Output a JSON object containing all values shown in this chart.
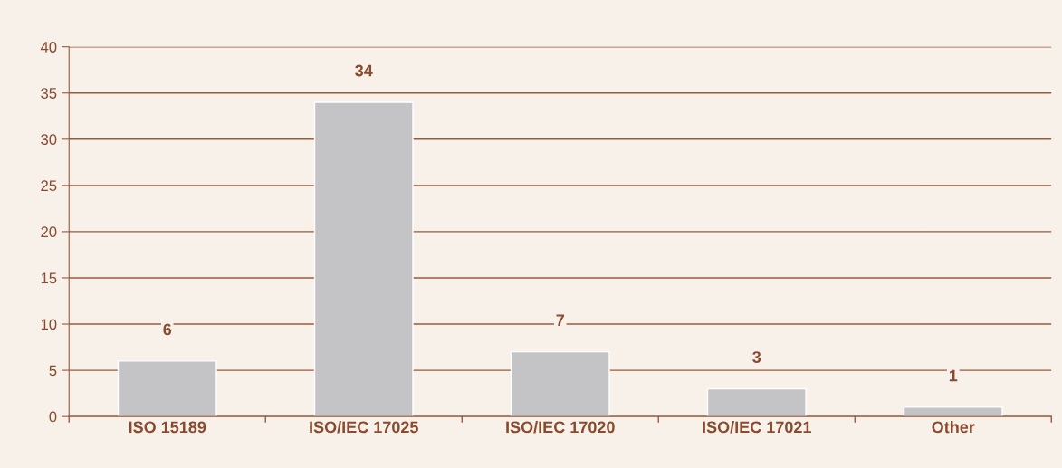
{
  "chart_data": {
    "type": "bar",
    "categories": [
      "ISO 15189",
      "ISO/IEC 17025",
      "ISO/IEC 17020",
      "ISO/IEC 17021",
      "Other"
    ],
    "values": [
      6,
      34,
      7,
      3,
      1
    ],
    "color": "#c4c4c6",
    "ylim": [
      0,
      40
    ],
    "yticks": [
      0,
      5,
      10,
      15,
      20,
      25,
      30,
      35,
      40
    ],
    "grid": "y",
    "data_labels": true
  }
}
